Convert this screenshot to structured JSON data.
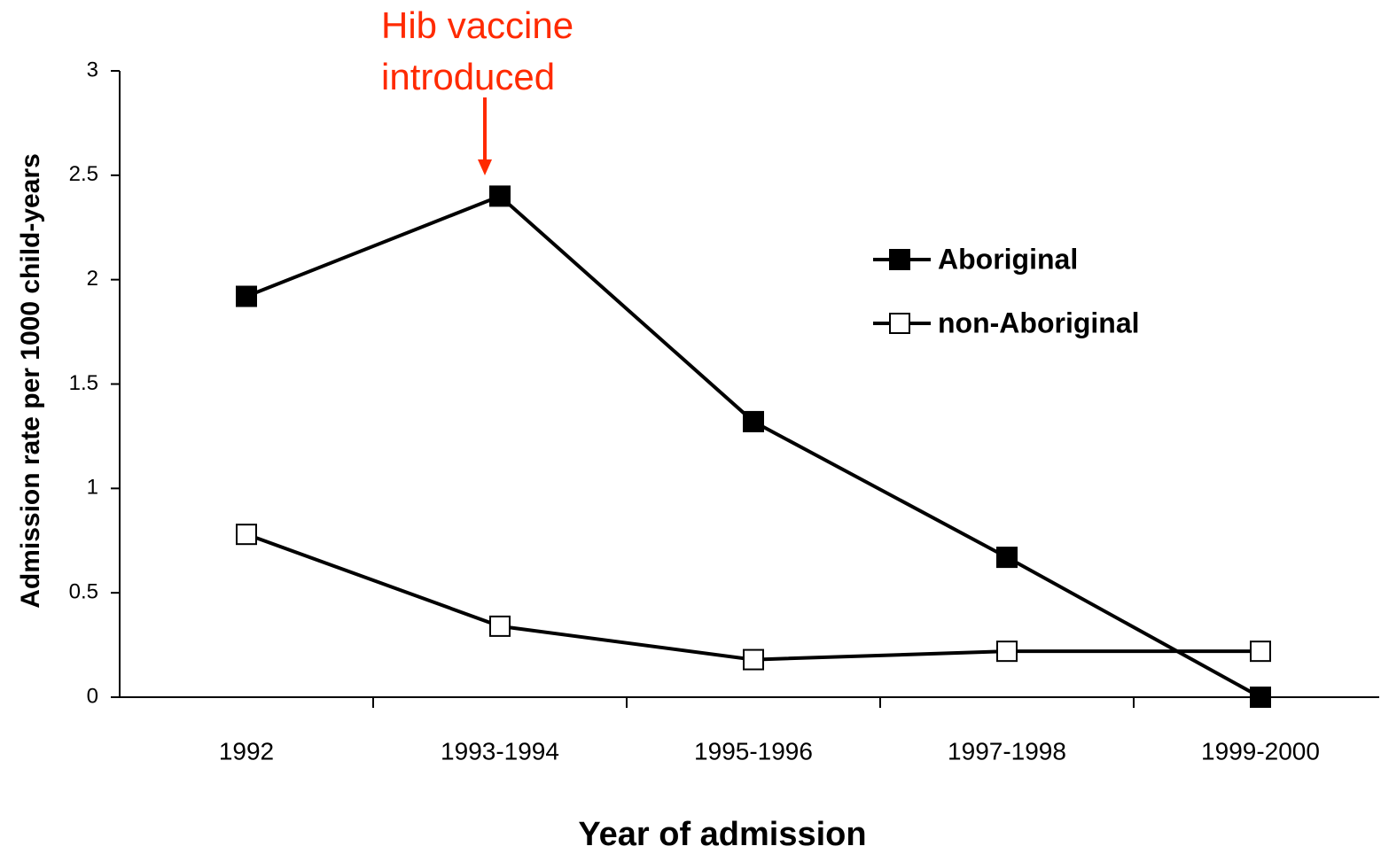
{
  "chart_data": {
    "type": "line",
    "categories": [
      "1992",
      "1993-1994",
      "1995-1996",
      "1997-1998",
      "1999-2000"
    ],
    "series": [
      {
        "name": "Aboriginal",
        "color": "#000000",
        "marker_fill": "#000000",
        "values": [
          1.92,
          2.4,
          1.32,
          0.67,
          0
        ]
      },
      {
        "name": "non-Aboriginal",
        "color": "#000000",
        "marker_fill": "#ffffff",
        "values": [
          0.78,
          0.34,
          0.18,
          0.22,
          0.22
        ]
      }
    ],
    "ylim": [
      0,
      3
    ],
    "yticks": [
      0,
      0.5,
      1,
      1.5,
      2,
      2.5,
      3
    ],
    "x_label": "Year of admission",
    "y_label": "Admission rate per 1000 child-years",
    "annotation": {
      "lines": [
        "Hib vaccine",
        "introduced"
      ],
      "color": "#ff2a00",
      "category_index": 1
    },
    "grid": false,
    "legend": "upper right"
  }
}
